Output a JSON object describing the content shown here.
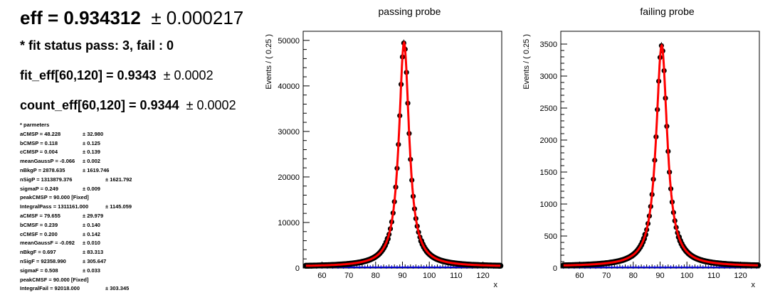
{
  "summary": {
    "eff_label": "eff = 0.934312",
    "eff_err": "± 0.000217",
    "fit_status": "* fit status pass: 3, fail : 0",
    "fit_eff_label": "fit_eff[60,120] = 0.9343",
    "fit_eff_err": "± 0.0002",
    "count_eff_label": "count_eff[60,120] = 0.9344",
    "count_eff_err": "± 0.0002"
  },
  "params_title": "* parmeters",
  "params": [
    {
      "label": "aCMSP = 48.228",
      "err": "± 32.980"
    },
    {
      "label": "bCMSP = 0.118",
      "err": "± 0.125"
    },
    {
      "label": "cCMSP = 0.004",
      "err": "± 0.139"
    },
    {
      "label": "meanGaussP = -0.066",
      "err": "± 0.002"
    },
    {
      "label": "nBkgP = 2878.635",
      "err": "± 1619.746"
    },
    {
      "label": "nSigP = 1313879.376",
      "err": "± 1621.792"
    },
    {
      "label": "sigmaP = 0.249",
      "err": "± 0.009"
    },
    {
      "label": "peakCMSP = 90.000 [Fixed]",
      "err": ""
    },
    {
      "label": "IntegralPass = 1311161.000",
      "err": "± 1145.059"
    },
    {
      "label": "aCMSF = 79.655",
      "err": "± 29.979"
    },
    {
      "label": "bCMSF = 0.239",
      "err": "± 0.140"
    },
    {
      "label": "cCMSF = 0.200",
      "err": "± 0.142"
    },
    {
      "label": "meanGaussF = -0.092",
      "err": "± 0.010"
    },
    {
      "label": "nBkgF = 0.697",
      "err": "± 83.313"
    },
    {
      "label": "nSigF = 92358.990",
      "err": "± 305.647"
    },
    {
      "label": "sigmaF = 0.508",
      "err": "± 0.033"
    },
    {
      "label": "peakCMSF = 90.000 [Fixed]",
      "err": ""
    },
    {
      "label": "IntegralFail = 92018.000",
      "err": "± 303.345"
    }
  ],
  "chart_data": [
    {
      "type": "scatter",
      "title": "passing probe",
      "xlabel": "x",
      "ylabel": "Events / ( 0.25 )",
      "xlim": [
        53,
        127
      ],
      "ylim": [
        0,
        52000
      ],
      "xticks": [
        60,
        70,
        80,
        90,
        100,
        110,
        120
      ],
      "yticks": [
        0,
        10000,
        20000,
        30000,
        40000,
        50000
      ],
      "peak": 49500,
      "mean": 90.6,
      "width": 2.3,
      "base": 300,
      "series": [
        {
          "values": [
            [
              54,
              200
            ],
            [
              60,
              300
            ],
            [
              66,
              700
            ],
            [
              70,
              1000
            ],
            [
              74,
              1500
            ],
            [
              78,
              2500
            ],
            [
              80,
              3500
            ],
            [
              82,
              5000
            ],
            [
              84,
              7500
            ],
            [
              85,
              9500
            ],
            [
              86,
              12500
            ],
            [
              87,
              17000
            ],
            [
              88,
              24000
            ],
            [
              89,
              33000
            ],
            [
              90,
              45000
            ],
            [
              90.5,
              49500
            ],
            [
              91,
              46000
            ],
            [
              92,
              34000
            ],
            [
              93,
              22000
            ],
            [
              94,
              14000
            ],
            [
              95,
              9000
            ],
            [
              96,
              6000
            ],
            [
              98,
              3000
            ],
            [
              100,
              1800
            ],
            [
              104,
              900
            ],
            [
              110,
              500
            ],
            [
              120,
              300
            ],
            [
              126,
              200
            ]
          ],
          "color": "#000000"
        },
        {
          "values": [
            [
              54,
              200
            ],
            [
              66,
              700
            ],
            [
              74,
              1500
            ],
            [
              80,
              3500
            ],
            [
              84,
              7500
            ],
            [
              86,
              12500
            ],
            [
              88,
              24000
            ],
            [
              89,
              33000
            ],
            [
              90,
              45000
            ],
            [
              90.5,
              49500
            ],
            [
              91,
              46000
            ],
            [
              92,
              34000
            ],
            [
              94,
              14000
            ],
            [
              96,
              6000
            ],
            [
              100,
              1800
            ],
            [
              110,
              500
            ],
            [
              126,
              200
            ]
          ],
          "color": "#ff0000"
        },
        {
          "values": [
            [
              54,
              150
            ],
            [
              126,
              150
            ]
          ],
          "color": "#0000cc"
        }
      ]
    },
    {
      "type": "scatter",
      "title": "failing probe",
      "xlabel": "x",
      "ylabel": "Events / ( 0.25 )",
      "xlim": [
        53,
        127
      ],
      "ylim": [
        0,
        3700
      ],
      "xticks": [
        60,
        70,
        80,
        90,
        100,
        110,
        120
      ],
      "yticks": [
        0,
        500,
        1000,
        1500,
        2000,
        2500,
        3000,
        3500
      ],
      "peak": 3480,
      "mean": 90.6,
      "width": 2.5,
      "base": 25,
      "series": [
        {
          "values": [
            [
              54,
              20
            ],
            [
              60,
              30
            ],
            [
              66,
              60
            ],
            [
              70,
              90
            ],
            [
              74,
              140
            ],
            [
              78,
              220
            ],
            [
              80,
              300
            ],
            [
              82,
              420
            ],
            [
              84,
              600
            ],
            [
              85,
              750
            ],
            [
              86,
              950
            ],
            [
              87,
              1250
            ],
            [
              88,
              1750
            ],
            [
              89,
              2400
            ],
            [
              90,
              3100
            ],
            [
              90.5,
              3480
            ],
            [
              91,
              3200
            ],
            [
              92,
              2400
            ],
            [
              93,
              1600
            ],
            [
              94,
              1050
            ],
            [
              95,
              700
            ],
            [
              96,
              470
            ],
            [
              98,
              250
            ],
            [
              100,
              150
            ],
            [
              104,
              80
            ],
            [
              110,
              45
            ],
            [
              120,
              25
            ],
            [
              126,
              20
            ]
          ],
          "color": "#000000"
        },
        {
          "values": [
            [
              54,
              20
            ],
            [
              66,
              60
            ],
            [
              74,
              140
            ],
            [
              80,
              300
            ],
            [
              84,
              600
            ],
            [
              86,
              950
            ],
            [
              88,
              1750
            ],
            [
              89,
              2400
            ],
            [
              90,
              3050
            ],
            [
              90.5,
              3380
            ],
            [
              91,
              3200
            ],
            [
              92,
              2400
            ],
            [
              94,
              1050
            ],
            [
              96,
              470
            ],
            [
              100,
              150
            ],
            [
              110,
              45
            ],
            [
              126,
              20
            ]
          ],
          "color": "#ff0000"
        },
        {
          "values": [
            [
              54,
              10
            ],
            [
              126,
              10
            ]
          ],
          "color": "#0000cc"
        }
      ]
    }
  ]
}
